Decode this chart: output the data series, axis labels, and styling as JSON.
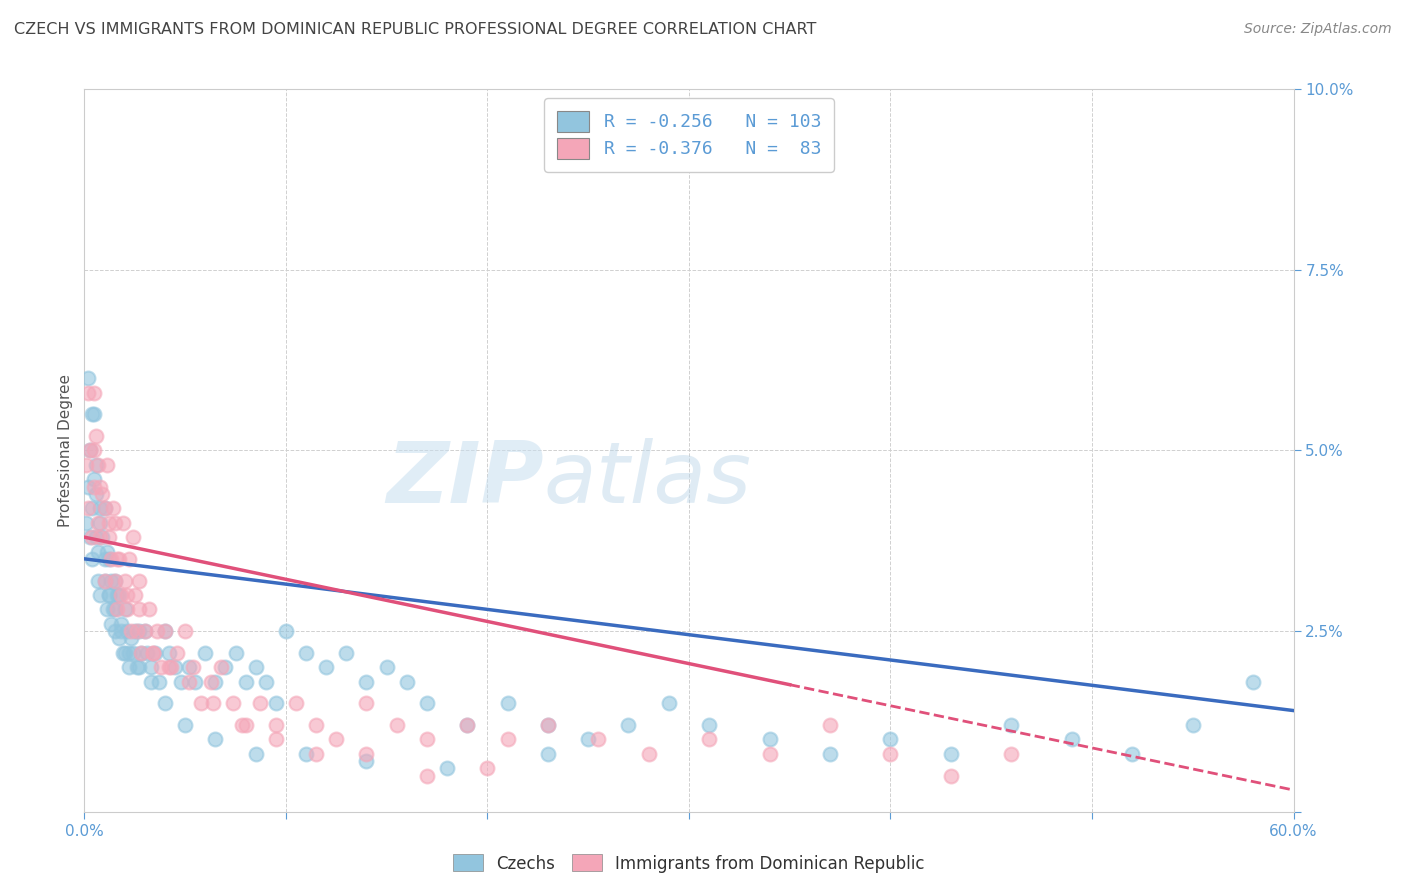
{
  "title": "CZECH VS IMMIGRANTS FROM DOMINICAN REPUBLIC PROFESSIONAL DEGREE CORRELATION CHART",
  "source": "Source: ZipAtlas.com",
  "ylabel": "Professional Degree",
  "x_min": 0.0,
  "x_max": 0.6,
  "y_min": 0.0,
  "y_max": 0.1,
  "czech_color": "#92c5de",
  "dominican_color": "#f4a6b8",
  "czech_R": -0.256,
  "czech_N": 103,
  "dominican_R": -0.376,
  "dominican_N": 83,
  "legend_label_czech": "Czechs",
  "legend_label_dominican": "Immigrants from Dominican Republic",
  "watermark_zip": "ZIP",
  "watermark_atlas": "atlas",
  "bg_color": "#ffffff",
  "grid_color": "#d0d0d0",
  "tick_color": "#5b9bd5",
  "title_color": "#444444",
  "trend_czech_color": "#3a6bbf",
  "trend_dominican_color": "#e0507a",
  "czech_trend_y0": 0.035,
  "czech_trend_y1": 0.014,
  "dominican_trend_y0": 0.038,
  "dominican_trend_y1": 0.003,
  "czech_x": [
    0.001,
    0.002,
    0.003,
    0.003,
    0.004,
    0.004,
    0.005,
    0.005,
    0.006,
    0.006,
    0.007,
    0.007,
    0.008,
    0.008,
    0.009,
    0.01,
    0.01,
    0.011,
    0.011,
    0.012,
    0.012,
    0.013,
    0.013,
    0.014,
    0.015,
    0.015,
    0.016,
    0.017,
    0.017,
    0.018,
    0.019,
    0.02,
    0.02,
    0.021,
    0.022,
    0.023,
    0.024,
    0.025,
    0.026,
    0.027,
    0.028,
    0.03,
    0.031,
    0.033,
    0.035,
    0.037,
    0.04,
    0.042,
    0.045,
    0.048,
    0.052,
    0.055,
    0.06,
    0.065,
    0.07,
    0.075,
    0.08,
    0.085,
    0.09,
    0.095,
    0.1,
    0.11,
    0.12,
    0.13,
    0.14,
    0.15,
    0.16,
    0.17,
    0.19,
    0.21,
    0.23,
    0.25,
    0.27,
    0.29,
    0.31,
    0.34,
    0.37,
    0.4,
    0.43,
    0.46,
    0.49,
    0.52,
    0.55,
    0.58,
    0.002,
    0.004,
    0.006,
    0.008,
    0.01,
    0.012,
    0.015,
    0.018,
    0.022,
    0.027,
    0.033,
    0.04,
    0.05,
    0.065,
    0.085,
    0.11,
    0.14,
    0.18,
    0.23
  ],
  "czech_y": [
    0.04,
    0.045,
    0.05,
    0.038,
    0.042,
    0.035,
    0.055,
    0.046,
    0.038,
    0.044,
    0.032,
    0.036,
    0.042,
    0.03,
    0.038,
    0.032,
    0.042,
    0.028,
    0.036,
    0.03,
    0.035,
    0.026,
    0.032,
    0.028,
    0.025,
    0.032,
    0.03,
    0.024,
    0.03,
    0.026,
    0.022,
    0.028,
    0.022,
    0.025,
    0.02,
    0.024,
    0.022,
    0.025,
    0.02,
    0.025,
    0.022,
    0.025,
    0.022,
    0.02,
    0.022,
    0.018,
    0.025,
    0.022,
    0.02,
    0.018,
    0.02,
    0.018,
    0.022,
    0.018,
    0.02,
    0.022,
    0.018,
    0.02,
    0.018,
    0.015,
    0.025,
    0.022,
    0.02,
    0.022,
    0.018,
    0.02,
    0.018,
    0.015,
    0.012,
    0.015,
    0.012,
    0.01,
    0.012,
    0.015,
    0.012,
    0.01,
    0.008,
    0.01,
    0.008,
    0.012,
    0.01,
    0.008,
    0.012,
    0.018,
    0.06,
    0.055,
    0.048,
    0.04,
    0.035,
    0.03,
    0.028,
    0.025,
    0.022,
    0.02,
    0.018,
    0.015,
    0.012,
    0.01,
    0.008,
    0.008,
    0.007,
    0.006,
    0.008
  ],
  "dominican_x": [
    0.001,
    0.002,
    0.003,
    0.004,
    0.005,
    0.005,
    0.006,
    0.007,
    0.007,
    0.008,
    0.009,
    0.01,
    0.01,
    0.011,
    0.012,
    0.013,
    0.014,
    0.015,
    0.015,
    0.016,
    0.017,
    0.018,
    0.019,
    0.02,
    0.021,
    0.022,
    0.023,
    0.024,
    0.025,
    0.026,
    0.027,
    0.028,
    0.03,
    0.032,
    0.034,
    0.036,
    0.038,
    0.04,
    0.043,
    0.046,
    0.05,
    0.054,
    0.058,
    0.063,
    0.068,
    0.074,
    0.08,
    0.087,
    0.095,
    0.105,
    0.115,
    0.125,
    0.14,
    0.155,
    0.17,
    0.19,
    0.21,
    0.23,
    0.255,
    0.28,
    0.31,
    0.34,
    0.37,
    0.4,
    0.43,
    0.46,
    0.002,
    0.005,
    0.008,
    0.012,
    0.016,
    0.021,
    0.027,
    0.034,
    0.042,
    0.052,
    0.064,
    0.078,
    0.095,
    0.115,
    0.14,
    0.17,
    0.2
  ],
  "dominican_y": [
    0.048,
    0.042,
    0.05,
    0.038,
    0.058,
    0.045,
    0.052,
    0.04,
    0.048,
    0.038,
    0.044,
    0.042,
    0.032,
    0.048,
    0.038,
    0.035,
    0.042,
    0.032,
    0.04,
    0.028,
    0.035,
    0.03,
    0.04,
    0.032,
    0.028,
    0.035,
    0.025,
    0.038,
    0.03,
    0.025,
    0.032,
    0.022,
    0.025,
    0.028,
    0.022,
    0.025,
    0.02,
    0.025,
    0.02,
    0.022,
    0.025,
    0.02,
    0.015,
    0.018,
    0.02,
    0.015,
    0.012,
    0.015,
    0.012,
    0.015,
    0.012,
    0.01,
    0.015,
    0.012,
    0.01,
    0.012,
    0.01,
    0.012,
    0.01,
    0.008,
    0.01,
    0.008,
    0.012,
    0.008,
    0.005,
    0.008,
    0.058,
    0.05,
    0.045,
    0.04,
    0.035,
    0.03,
    0.028,
    0.022,
    0.02,
    0.018,
    0.015,
    0.012,
    0.01,
    0.008,
    0.008,
    0.005,
    0.006
  ]
}
